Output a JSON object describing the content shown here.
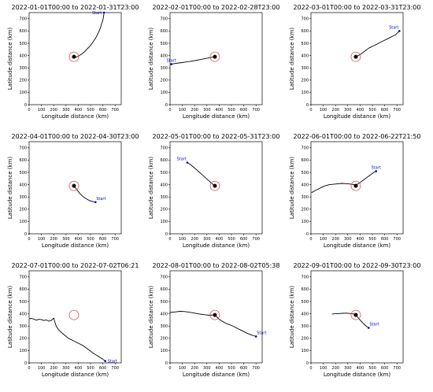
{
  "axes": {
    "xlabel": "Longitude distance (km)",
    "ylabel": "Latitude distance (km)",
    "xlim": [
      0,
      750
    ],
    "ylim": [
      0,
      750
    ],
    "ticks": [
      0,
      100,
      200,
      300,
      400,
      500,
      600,
      700
    ],
    "grid": false
  },
  "colors": {
    "track": "#000000",
    "start": "#0000cc",
    "circle": "#e05050"
  },
  "start_label": "Start",
  "chart_data": [
    {
      "type": "line",
      "title": "2022-01-01T00:00 to 2022-01-31T23:00",
      "center": [
        365,
        390
      ],
      "start": [
        610,
        750
      ],
      "start_label_pos": "left",
      "x": [
        610,
        608,
        604,
        598,
        590,
        582,
        570,
        556,
        540,
        520,
        498,
        474,
        450,
        425,
        400,
        385,
        375,
        368,
        366
      ],
      "y": [
        750,
        730,
        705,
        680,
        660,
        630,
        600,
        570,
        540,
        510,
        480,
        455,
        430,
        410,
        395,
        388,
        386,
        388,
        390
      ]
    },
    {
      "type": "line",
      "title": "2022-02-01T00:00 to 2022-02-28T23:00",
      "center": [
        365,
        390
      ],
      "start": [
        10,
        330
      ],
      "start_label_pos": "above",
      "x": [
        10,
        40,
        70,
        100,
        130,
        160,
        190,
        220,
        250,
        280,
        310,
        340,
        360,
        366
      ],
      "y": [
        330,
        335,
        340,
        343,
        348,
        352,
        357,
        362,
        368,
        374,
        380,
        386,
        389,
        390
      ]
    },
    {
      "type": "line",
      "title": "2022-03-01T00:00 to 2022-03-31T23:00",
      "center": [
        365,
        390
      ],
      "start": [
        720,
        600
      ],
      "start_label_pos": "above-left",
      "x": [
        720,
        705,
        690,
        670,
        650,
        630,
        610,
        590,
        570,
        550,
        530,
        510,
        490,
        470,
        450,
        430,
        410,
        390,
        375,
        366
      ],
      "y": [
        600,
        585,
        570,
        560,
        550,
        540,
        530,
        520,
        510,
        500,
        490,
        480,
        470,
        460,
        445,
        430,
        415,
        402,
        395,
        390
      ]
    },
    {
      "type": "line",
      "title": "2022-04-01T00:00 to 2022-04-30T23:00",
      "center": [
        365,
        390
      ],
      "start": [
        540,
        258
      ],
      "start_label_pos": "above-right",
      "x": [
        540,
        520,
        500,
        480,
        460,
        440,
        420,
        405,
        392,
        382,
        375,
        370,
        367,
        366
      ],
      "y": [
        258,
        262,
        268,
        276,
        288,
        302,
        320,
        338,
        355,
        368,
        378,
        385,
        388,
        390
      ]
    },
    {
      "type": "line",
      "title": "2022-05-01T00:00 to 2022-05-31T23:00",
      "center": [
        365,
        390
      ],
      "start": [
        140,
        580
      ],
      "start_label_pos": "above-left",
      "x": [
        140,
        160,
        180,
        200,
        220,
        240,
        260,
        280,
        300,
        320,
        340,
        355,
        362,
        366
      ],
      "y": [
        580,
        568,
        552,
        535,
        518,
        500,
        482,
        464,
        446,
        428,
        410,
        398,
        392,
        390
      ]
    },
    {
      "type": "line",
      "title": "2022-06-01T00:00 to 2022-06-22T21:50",
      "center": [
        365,
        390
      ],
      "start": [
        530,
        510
      ],
      "start_label_pos": "above",
      "x": [
        530,
        510,
        490,
        470,
        450,
        430,
        410,
        390,
        370,
        340,
        300,
        250,
        200,
        150,
        120,
        90,
        60,
        30,
        5
      ],
      "y": [
        510,
        498,
        484,
        470,
        455,
        440,
        425,
        410,
        398,
        402,
        408,
        410,
        405,
        400,
        392,
        380,
        365,
        350,
        335
      ]
    },
    {
      "type": "line",
      "title": "2022-07-01T00:00 to 2022-07-02T06:21",
      "center": [
        365,
        390
      ],
      "start": [
        620,
        15
      ],
      "start_label_pos": "right",
      "x": [
        0,
        20,
        40,
        60,
        80,
        100,
        120,
        140,
        160,
        180,
        200,
        220,
        240,
        260,
        290,
        320,
        360,
        400,
        440,
        480,
        520,
        560,
        600,
        620
      ],
      "y": [
        360,
        362,
        355,
        348,
        355,
        352,
        345,
        350,
        340,
        345,
        365,
        300,
        270,
        250,
        225,
        200,
        180,
        160,
        140,
        110,
        80,
        55,
        30,
        15
      ]
    },
    {
      "type": "line",
      "title": "2022-08-01T00:00 to 2022-08-02T05:38",
      "center": [
        365,
        390
      ],
      "start": [
        700,
        215
      ],
      "start_label_pos": "above-right",
      "x": [
        0,
        40,
        80,
        120,
        160,
        200,
        240,
        280,
        320,
        350,
        366,
        380,
        400,
        430,
        460,
        500,
        540,
        580,
        620,
        660,
        700
      ],
      "y": [
        410,
        415,
        420,
        418,
        412,
        405,
        398,
        392,
        388,
        390,
        390,
        375,
        355,
        335,
        320,
        305,
        285,
        265,
        245,
        228,
        215
      ]
    },
    {
      "type": "line",
      "title": "2022-09-01T00:00 to 2022-09-30T23:00",
      "center": [
        365,
        390
      ],
      "start": [
        470,
        285
      ],
      "start_label_pos": "above-right",
      "x": [
        470,
        455,
        440,
        425,
        410,
        395,
        380,
        370,
        366,
        350,
        320,
        290,
        260,
        230,
        200,
        170
      ],
      "y": [
        285,
        295,
        308,
        322,
        338,
        355,
        372,
        384,
        390,
        398,
        402,
        405,
        404,
        402,
        400,
        398
      ]
    }
  ]
}
